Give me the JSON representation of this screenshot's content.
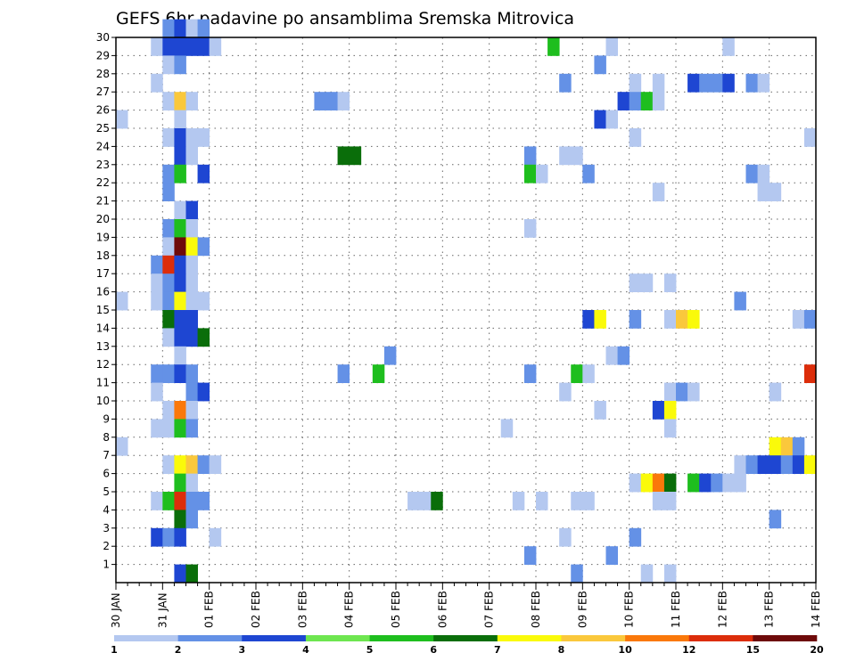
{
  "chart_data": {
    "type": "heatmap",
    "title": "GEFS 6hr padavine po ansamblima Sremska Mitrovica",
    "x_ticks": [
      "30 JAN",
      "31 JAN",
      "01 FEB",
      "02 FEB",
      "03 FEB",
      "04 FEB",
      "05 FEB",
      "06 FEB",
      "07 FEB",
      "08 FEB",
      "09 FEB",
      "10 FEB",
      "11 FEB",
      "12 FEB",
      "13 FEB",
      "14 FEB"
    ],
    "y_ticks": [
      "1",
      "2",
      "3",
      "4",
      "5",
      "6",
      "7",
      "8",
      "9",
      "10",
      "11",
      "12",
      "13",
      "14",
      "15",
      "16",
      "17",
      "18",
      "19",
      "20",
      "21",
      "22",
      "23",
      "24",
      "25",
      "26",
      "27",
      "28",
      "29",
      "30"
    ],
    "x_range": [
      "30 JAN 00Z",
      "14 FEB 00Z"
    ],
    "y_range": [
      0,
      30
    ],
    "step_hours": 6,
    "grid": true,
    "colorbar": {
      "labels": [
        "1",
        "2",
        "3",
        "4",
        "5",
        "6",
        "7",
        "8",
        "10",
        "12",
        "15",
        "20"
      ],
      "colors": [
        "#b4c8f0",
        "#6491e6",
        "#1e46d2",
        "#6ee650",
        "#1ebe1e",
        "#0a6e0a",
        "#fafa0a",
        "#fac83c",
        "#fa780a",
        "#dc2d0a",
        "#6e0a0a"
      ]
    },
    "cells": [
      [
        30,
        4,
        2
      ],
      [
        30,
        5,
        3
      ],
      [
        30,
        6,
        1
      ],
      [
        30,
        7,
        2
      ],
      [
        29,
        3,
        1
      ],
      [
        29,
        4,
        3
      ],
      [
        29,
        5,
        3
      ],
      [
        29,
        6,
        3
      ],
      [
        29,
        7,
        3
      ],
      [
        29,
        8,
        1
      ],
      [
        29,
        37,
        5
      ],
      [
        29,
        42,
        1
      ],
      [
        29,
        52,
        1
      ],
      [
        28,
        4,
        1
      ],
      [
        28,
        5,
        2
      ],
      [
        28,
        41,
        2
      ],
      [
        27,
        3,
        1
      ],
      [
        27,
        38,
        2
      ],
      [
        27,
        44,
        1
      ],
      [
        27,
        46,
        1
      ],
      [
        27,
        49,
        3
      ],
      [
        27,
        50,
        2
      ],
      [
        27,
        51,
        2
      ],
      [
        27,
        52,
        3
      ],
      [
        27,
        54,
        2
      ],
      [
        27,
        55,
        1
      ],
      [
        26,
        4,
        1
      ],
      [
        26,
        5,
        8
      ],
      [
        26,
        6,
        1
      ],
      [
        26,
        17,
        2
      ],
      [
        26,
        18,
        2
      ],
      [
        26,
        19,
        1
      ],
      [
        26,
        43,
        3
      ],
      [
        26,
        44,
        2
      ],
      [
        26,
        45,
        5
      ],
      [
        26,
        46,
        1
      ],
      [
        25,
        0,
        1
      ],
      [
        25,
        5,
        1
      ],
      [
        25,
        41,
        3
      ],
      [
        25,
        42,
        1
      ],
      [
        24,
        4,
        1
      ],
      [
        24,
        5,
        3
      ],
      [
        24,
        6,
        1
      ],
      [
        24,
        7,
        1
      ],
      [
        24,
        44,
        1
      ],
      [
        24,
        59,
        1
      ],
      [
        23,
        5,
        3
      ],
      [
        23,
        6,
        1
      ],
      [
        23,
        19,
        6
      ],
      [
        23,
        20,
        6
      ],
      [
        23,
        35,
        2
      ],
      [
        23,
        38,
        1
      ],
      [
        23,
        39,
        1
      ],
      [
        22,
        4,
        2
      ],
      [
        22,
        5,
        5
      ],
      [
        22,
        7,
        3
      ],
      [
        22,
        35,
        5
      ],
      [
        22,
        36,
        1
      ],
      [
        22,
        40,
        2
      ],
      [
        22,
        54,
        2
      ],
      [
        22,
        55,
        1
      ],
      [
        21,
        4,
        2
      ],
      [
        21,
        46,
        1
      ],
      [
        21,
        55,
        1
      ],
      [
        21,
        56,
        1
      ],
      [
        20,
        5,
        1
      ],
      [
        20,
        6,
        3
      ],
      [
        19,
        4,
        2
      ],
      [
        19,
        5,
        5
      ],
      [
        19,
        6,
        1
      ],
      [
        19,
        35,
        1
      ],
      [
        18,
        4,
        1
      ],
      [
        18,
        5,
        11
      ],
      [
        18,
        6,
        7
      ],
      [
        18,
        7,
        2
      ],
      [
        17,
        3,
        2
      ],
      [
        17,
        4,
        10
      ],
      [
        17,
        5,
        3
      ],
      [
        17,
        6,
        1
      ],
      [
        16,
        3,
        1
      ],
      [
        16,
        4,
        2
      ],
      [
        16,
        5,
        3
      ],
      [
        16,
        6,
        1
      ],
      [
        16,
        44,
        1
      ],
      [
        16,
        45,
        1
      ],
      [
        16,
        47,
        1
      ],
      [
        15,
        0,
        1
      ],
      [
        15,
        3,
        1
      ],
      [
        15,
        4,
        2
      ],
      [
        15,
        5,
        7
      ],
      [
        15,
        6,
        1
      ],
      [
        15,
        7,
        1
      ],
      [
        15,
        53,
        2
      ],
      [
        14,
        4,
        6
      ],
      [
        14,
        5,
        3
      ],
      [
        14,
        6,
        3
      ],
      [
        14,
        40,
        3
      ],
      [
        14,
        41,
        7
      ],
      [
        14,
        44,
        2
      ],
      [
        14,
        47,
        1
      ],
      [
        14,
        48,
        8
      ],
      [
        14,
        49,
        7
      ],
      [
        14,
        58,
        1
      ],
      [
        14,
        59,
        2
      ],
      [
        13,
        4,
        1
      ],
      [
        13,
        5,
        3
      ],
      [
        13,
        6,
        3
      ],
      [
        13,
        7,
        6
      ],
      [
        12,
        5,
        1
      ],
      [
        12,
        23,
        2
      ],
      [
        12,
        42,
        1
      ],
      [
        12,
        43,
        2
      ],
      [
        11,
        3,
        2
      ],
      [
        11,
        4,
        2
      ],
      [
        11,
        5,
        3
      ],
      [
        11,
        6,
        2
      ],
      [
        11,
        19,
        2
      ],
      [
        11,
        22,
        5
      ],
      [
        11,
        35,
        2
      ],
      [
        11,
        39,
        5
      ],
      [
        11,
        40,
        1
      ],
      [
        11,
        59,
        10
      ],
      [
        10,
        3,
        1
      ],
      [
        10,
        6,
        2
      ],
      [
        10,
        7,
        3
      ],
      [
        10,
        38,
        1
      ],
      [
        10,
        47,
        1
      ],
      [
        10,
        48,
        2
      ],
      [
        10,
        49,
        1
      ],
      [
        10,
        56,
        1
      ],
      [
        9,
        4,
        1
      ],
      [
        9,
        5,
        9
      ],
      [
        9,
        6,
        1
      ],
      [
        9,
        41,
        1
      ],
      [
        9,
        46,
        3
      ],
      [
        9,
        47,
        7
      ],
      [
        8,
        3,
        1
      ],
      [
        8,
        4,
        1
      ],
      [
        8,
        5,
        5
      ],
      [
        8,
        6,
        2
      ],
      [
        8,
        33,
        1
      ],
      [
        8,
        47,
        1
      ],
      [
        7,
        0,
        1
      ],
      [
        7,
        56,
        7
      ],
      [
        7,
        57,
        8
      ],
      [
        7,
        58,
        2
      ],
      [
        6,
        4,
        1
      ],
      [
        6,
        5,
        7
      ],
      [
        6,
        6,
        8
      ],
      [
        6,
        7,
        2
      ],
      [
        6,
        8,
        1
      ],
      [
        6,
        53,
        1
      ],
      [
        6,
        54,
        2
      ],
      [
        6,
        55,
        3
      ],
      [
        6,
        56,
        3
      ],
      [
        6,
        57,
        2
      ],
      [
        6,
        58,
        3
      ],
      [
        6,
        59,
        7
      ],
      [
        5,
        5,
        5
      ],
      [
        5,
        6,
        1
      ],
      [
        5,
        44,
        1
      ],
      [
        5,
        45,
        7
      ],
      [
        5,
        46,
        9
      ],
      [
        5,
        47,
        6
      ],
      [
        5,
        49,
        5
      ],
      [
        5,
        50,
        3
      ],
      [
        5,
        51,
        2
      ],
      [
        5,
        52,
        1
      ],
      [
        5,
        53,
        1
      ],
      [
        4,
        3,
        1
      ],
      [
        4,
        4,
        5
      ],
      [
        4,
        5,
        10
      ],
      [
        4,
        6,
        2
      ],
      [
        4,
        7,
        2
      ],
      [
        4,
        25,
        1
      ],
      [
        4,
        26,
        1
      ],
      [
        4,
        27,
        6
      ],
      [
        4,
        34,
        1
      ],
      [
        4,
        36,
        1
      ],
      [
        4,
        39,
        1
      ],
      [
        4,
        40,
        1
      ],
      [
        4,
        46,
        1
      ],
      [
        4,
        47,
        1
      ],
      [
        3,
        5,
        6
      ],
      [
        3,
        6,
        2
      ],
      [
        3,
        56,
        2
      ],
      [
        2,
        3,
        3
      ],
      [
        2,
        4,
        2
      ],
      [
        2,
        5,
        3
      ],
      [
        2,
        8,
        1
      ],
      [
        2,
        38,
        1
      ],
      [
        2,
        44,
        2
      ],
      [
        1,
        35,
        2
      ],
      [
        1,
        42,
        2
      ],
      [
        0,
        5,
        3
      ],
      [
        0,
        6,
        6
      ],
      [
        0,
        39,
        2
      ],
      [
        0,
        45,
        1
      ],
      [
        0,
        47,
        1
      ]
    ]
  }
}
